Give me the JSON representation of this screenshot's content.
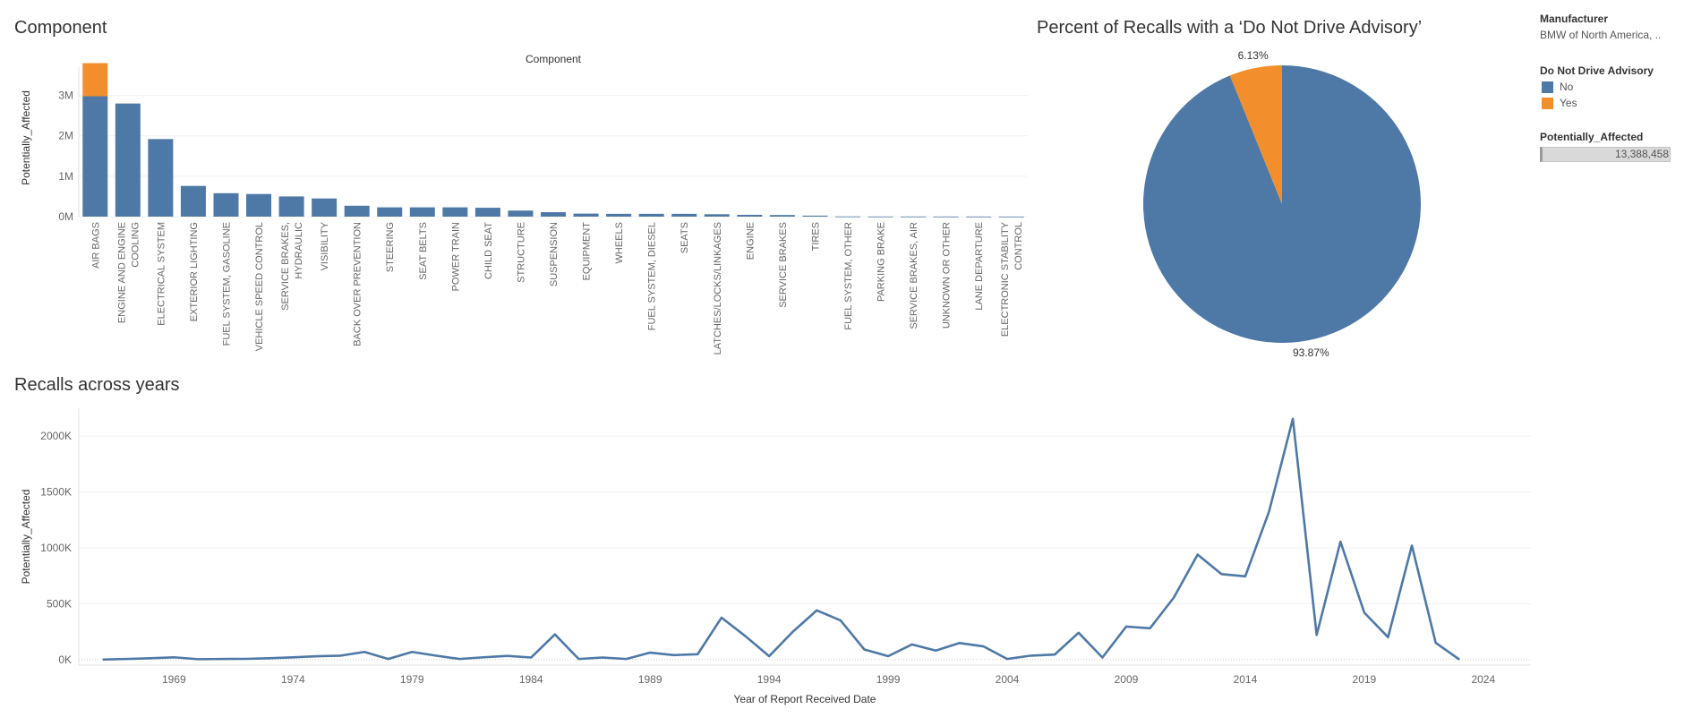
{
  "titles": {
    "component": "Component",
    "pie": "Percent of Recalls with a  ‘Do Not Drive Advisory’",
    "line": "Recalls across years"
  },
  "legend": {
    "manufacturer_header": "Manufacturer",
    "manufacturer_value": "BMW of North America, ..",
    "dnd_header": "Do Not Drive Advisory",
    "items": [
      {
        "label": "No",
        "color": "#4e79a7"
      },
      {
        "label": "Yes",
        "color": "#f28e2b"
      }
    ],
    "pa_header": "Potentially_Affected",
    "pa_value": "13,388,458"
  },
  "chart_data": [
    {
      "type": "bar",
      "title": "Component",
      "ylabel": "Potentially_Affected",
      "xlabel": "",
      "ylim": [
        0,
        3900000
      ],
      "yticks": [
        "0M",
        "1M",
        "2M",
        "3M"
      ],
      "stacked": true,
      "colors": {
        "No": "#4e79a7",
        "Yes": "#f28e2b"
      },
      "categories": [
        [
          "AIR BAGS"
        ],
        [
          "ENGINE AND ENGINE",
          "COOLING"
        ],
        [
          "ELECTRICAL SYSTEM"
        ],
        [
          "EXTERIOR LIGHTING"
        ],
        [
          "FUEL SYSTEM, GASOLINE"
        ],
        [
          "VEHICLE SPEED CONTROL"
        ],
        [
          "SERVICE BRAKES,",
          "HYDRAULIC"
        ],
        [
          "VISIBILITY"
        ],
        [
          "BACK OVER PREVENTION"
        ],
        [
          "STEERING"
        ],
        [
          "SEAT BELTS"
        ],
        [
          "POWER TRAIN"
        ],
        [
          "CHILD SEAT"
        ],
        [
          "STRUCTURE"
        ],
        [
          "SUSPENSION"
        ],
        [
          "EQUIPMENT"
        ],
        [
          "WHEELS"
        ],
        [
          "FUEL SYSTEM, DIESEL"
        ],
        [
          "SEATS"
        ],
        [
          "LATCHES/LOCKS/LINKAGES"
        ],
        [
          "ENGINE"
        ],
        [
          "SERVICE BRAKES"
        ],
        [
          "TIRES"
        ],
        [
          "FUEL SYSTEM, OTHER"
        ],
        [
          "PARKING BRAKE"
        ],
        [
          "SERVICE BRAKES, AIR"
        ],
        [
          "UNKNOWN OR OTHER"
        ],
        [
          "LANE DEPARTURE"
        ],
        [
          "ELECTRONIC STABILITY",
          "CONTROL"
        ]
      ],
      "series": [
        {
          "name": "No",
          "values": [
            2980000,
            2800000,
            1920000,
            760000,
            580000,
            560000,
            500000,
            450000,
            270000,
            230000,
            230000,
            230000,
            220000,
            150000,
            110000,
            75000,
            70000,
            70000,
            70000,
            60000,
            45000,
            40000,
            25000,
            5000,
            3000,
            3000,
            2000,
            2000,
            1000
          ]
        },
        {
          "name": "Yes",
          "values": [
            820000,
            0,
            0,
            0,
            0,
            0,
            0,
            0,
            0,
            0,
            0,
            0,
            0,
            0,
            0,
            0,
            0,
            0,
            0,
            0,
            0,
            0,
            0,
            0,
            0,
            0,
            0,
            0,
            0
          ]
        }
      ]
    },
    {
      "type": "pie",
      "title": "Percent of Recalls with a  ‘Do Not Drive Advisory’",
      "slices": [
        {
          "label": "No",
          "value": 93.87,
          "text": "93.87%",
          "color": "#4e79a7"
        },
        {
          "label": "Yes",
          "value": 6.13,
          "text": "6.13%",
          "color": "#f28e2b"
        }
      ]
    },
    {
      "type": "line",
      "title": "Recalls across years",
      "xlabel": "Year of Report Received Date",
      "ylabel": "Potentially_Affected",
      "xlim": [
        1965,
        2026
      ],
      "ylim": [
        -50000,
        2250000
      ],
      "xticks": [
        1969,
        1974,
        1979,
        1984,
        1989,
        1994,
        1999,
        2004,
        2009,
        2014,
        2019,
        2024
      ],
      "yticks": [
        {
          "v": 0,
          "t": "0K"
        },
        {
          "v": 500000,
          "t": "500K"
        },
        {
          "v": 1000000,
          "t": "1000K"
        },
        {
          "v": 1500000,
          "t": "1500K"
        },
        {
          "v": 2000000,
          "t": "2000K"
        }
      ],
      "color": "#4e79a7",
      "x": [
        1966,
        1967,
        1968,
        1969,
        1970,
        1971,
        1972,
        1973,
        1974,
        1975,
        1976,
        1977,
        1978,
        1979,
        1980,
        1981,
        1982,
        1983,
        1984,
        1985,
        1986,
        1987,
        1988,
        1989,
        1990,
        1991,
        1992,
        1993,
        1994,
        1995,
        1996,
        1997,
        1998,
        1999,
        2000,
        2001,
        2002,
        2003,
        2004,
        2005,
        2006,
        2007,
        2008,
        2009,
        2010,
        2011,
        2012,
        2013,
        2014,
        2015,
        2016,
        2017,
        2018,
        2019,
        2020,
        2021,
        2022,
        2023
      ],
      "y": [
        0,
        5000,
        12000,
        20000,
        3000,
        5000,
        6000,
        12000,
        20000,
        30000,
        35000,
        68000,
        5000,
        68000,
        35000,
        5000,
        20000,
        33000,
        18000,
        225000,
        5000,
        18000,
        5000,
        62000,
        40000,
        48000,
        375000,
        210000,
        30000,
        250000,
        440000,
        350000,
        90000,
        30000,
        135000,
        80000,
        148000,
        118000,
        5000,
        35000,
        45000,
        240000,
        18000,
        295000,
        280000,
        555000,
        940000,
        765000,
        745000,
        1325000,
        2155000,
        220000,
        1055000,
        420000,
        200000,
        1020000,
        150000,
        0
      ]
    }
  ]
}
